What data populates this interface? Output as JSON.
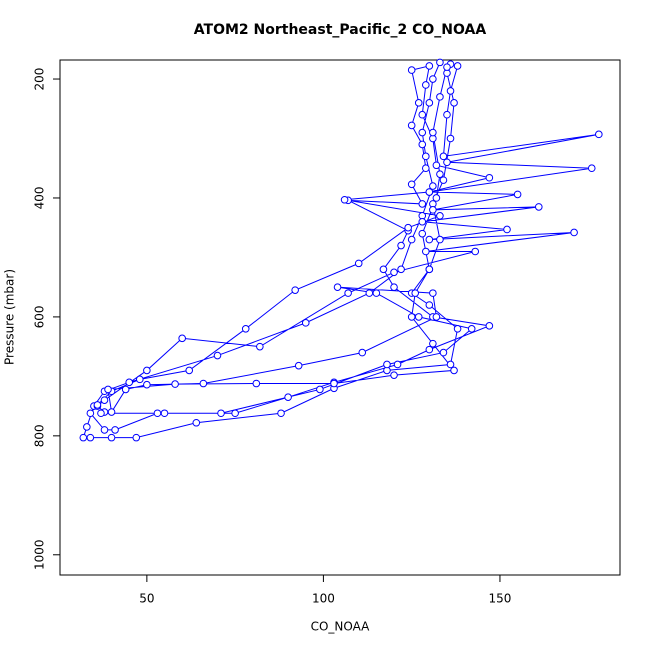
{
  "chart_data": {
    "type": "line",
    "markers": "circle",
    "color": "#0000ff",
    "title": "ATOM2 Northeast_Pacific_2 CO_NOAA",
    "xlabel": "CO_NOAA",
    "ylabel": "Pressure (mbar)",
    "xlim": [
      25.4,
      184
    ],
    "xticks": [
      50,
      100,
      150
    ],
    "ylim": [
      1034,
      168
    ],
    "yticks": [
      200,
      400,
      600,
      800,
      1000
    ],
    "x": [
      133,
      131,
      130,
      128,
      129,
      131,
      128,
      125,
      122,
      113,
      95,
      70,
      45,
      38,
      35,
      33,
      32,
      34,
      40,
      47,
      64,
      88,
      103,
      118,
      136,
      138,
      130,
      125,
      130,
      133,
      131,
      134,
      136,
      137,
      135,
      136,
      138,
      136,
      135,
      134,
      178,
      135,
      176,
      130,
      155,
      131,
      161,
      128,
      152,
      130,
      171,
      129,
      143,
      120,
      107,
      82,
      60,
      50,
      38,
      36,
      38,
      37,
      55,
      75,
      90,
      103,
      121,
      130,
      147,
      131,
      120,
      117,
      122,
      124,
      107,
      128,
      125,
      129,
      128,
      125,
      127,
      125,
      130,
      129,
      128,
      131,
      132,
      147,
      130,
      106,
      133,
      124,
      110,
      92,
      78,
      62,
      48,
      40,
      36,
      34,
      38,
      41,
      53,
      71,
      99,
      118,
      134,
      142,
      127,
      115,
      104,
      131,
      132,
      111,
      93,
      66,
      50,
      44,
      40,
      39,
      58,
      81,
      103,
      120,
      137,
      131,
      125,
      126,
      130,
      128,
      132,
      133,
      131,
      133,
      135
    ],
    "values": [
      172,
      200,
      240,
      290,
      330,
      380,
      430,
      470,
      520,
      560,
      610,
      665,
      710,
      725,
      750,
      785,
      803,
      803,
      803,
      803,
      778,
      762,
      720,
      690,
      680,
      620,
      580,
      560,
      520,
      470,
      410,
      370,
      300,
      240,
      190,
      175,
      178,
      220,
      260,
      330,
      293,
      340,
      350,
      390,
      394,
      420,
      415,
      440,
      453,
      470,
      458,
      490,
      490,
      525,
      560,
      650,
      636,
      690,
      740,
      750,
      760,
      762,
      762,
      762,
      735,
      710,
      680,
      655,
      615,
      600,
      550,
      520,
      480,
      455,
      404,
      410,
      377,
      350,
      310,
      278,
      240,
      185,
      178,
      210,
      260,
      300,
      345,
      366,
      390,
      403,
      430,
      450,
      510,
      555,
      620,
      690,
      705,
      725,
      748,
      762,
      790,
      790,
      762,
      762,
      722,
      680,
      660,
      620,
      600,
      560,
      550,
      560,
      600,
      660,
      682,
      712,
      714,
      722,
      760,
      722,
      713,
      712,
      712,
      698,
      690,
      645,
      600,
      560,
      520,
      460,
      400,
      360,
      290,
      230,
      180
    ]
  }
}
